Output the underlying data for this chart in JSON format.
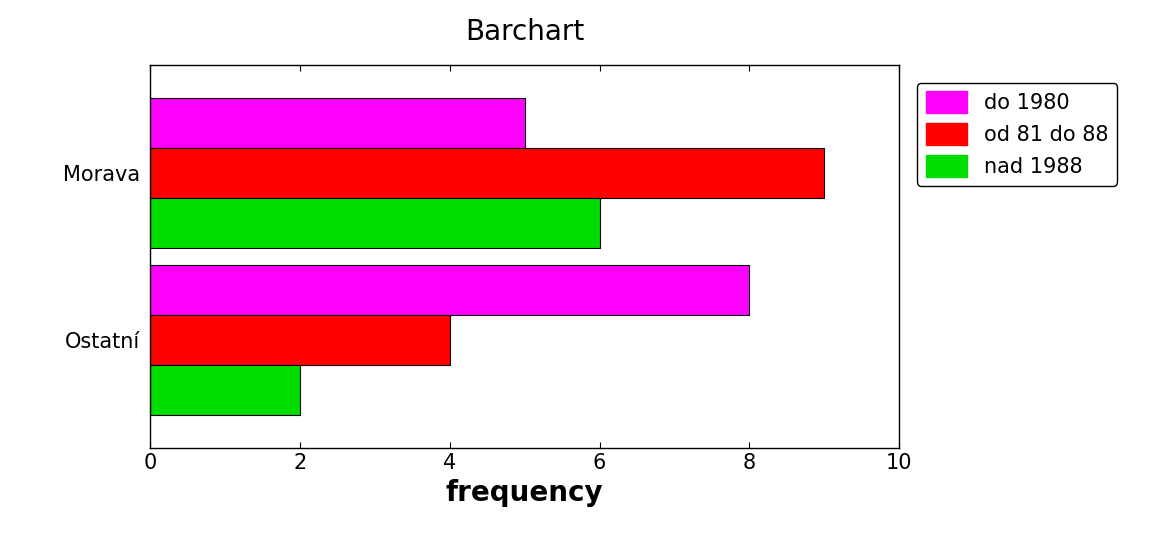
{
  "title": "Barchart",
  "categories": [
    "Ostatní",
    "Morava"
  ],
  "series": [
    {
      "label": "do 1980",
      "color": "#FF00FF",
      "values": [
        8,
        5
      ]
    },
    {
      "label": "od 81 do 88",
      "color": "#FF0000",
      "values": [
        4,
        9
      ]
    },
    {
      "label": "nad 1988",
      "color": "#00DD00",
      "values": [
        2,
        6
      ]
    }
  ],
  "xlabel": "frequency",
  "xlim": [
    0,
    10
  ],
  "xticks": [
    0,
    2,
    4,
    6,
    8,
    10
  ],
  "title_fontsize": 20,
  "xlabel_fontsize": 20,
  "tick_fontsize": 15,
  "legend_fontsize": 15,
  "bar_height": 0.3,
  "background_color": "#FFFFFF",
  "edge_color": "#000000"
}
